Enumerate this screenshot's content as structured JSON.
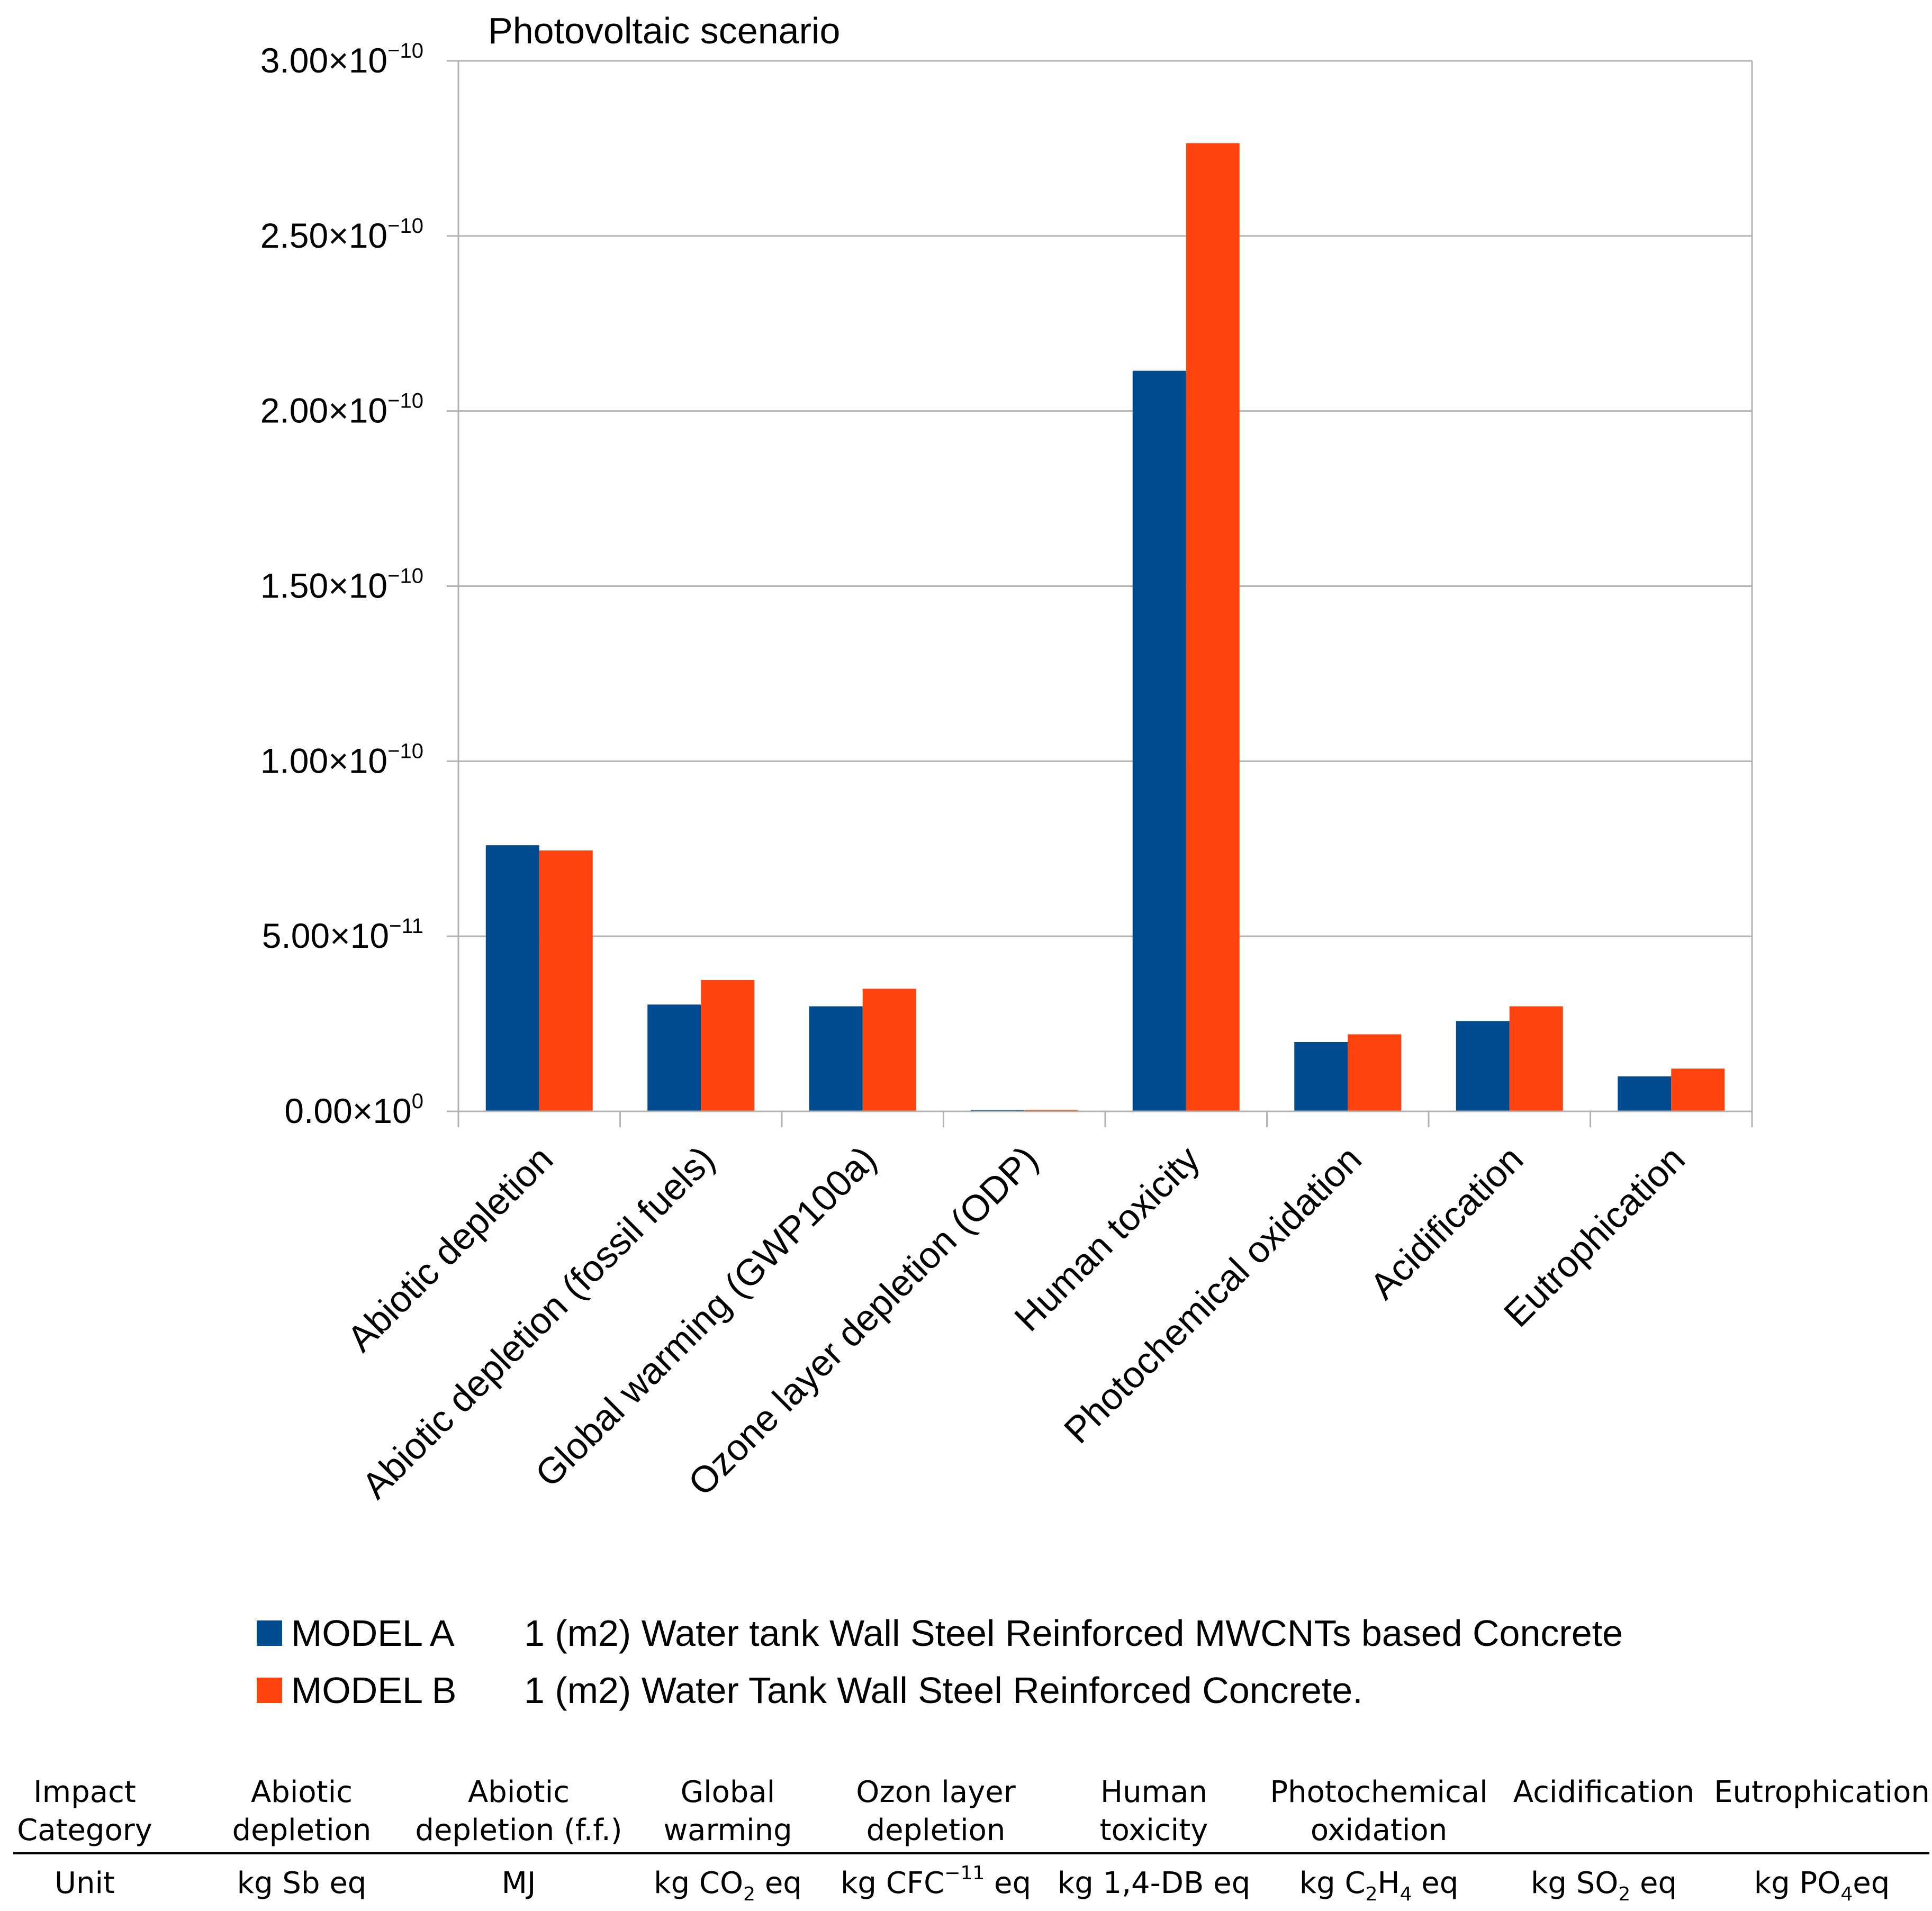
{
  "chart_data": {
    "type": "bar",
    "title": "Photovoltaic scenario",
    "categories": [
      "Abiotic depletion",
      "Abiotic depletion (fossil fuels)",
      "Global warming (GWP100a)",
      "Ozone layer depletion (ODP)",
      "Human toxicity",
      "Photochemical oxidation",
      "Acidification",
      "Eutrophication"
    ],
    "series": [
      {
        "name": "MODEL A",
        "description": "1 (m2) Water tank Wall Steel Reinforced MWCNTs based Concrete",
        "color": "#004a8f",
        "values": [
          7.6e-11,
          3.05e-11,
          3e-11,
          3e-13,
          2.115e-10,
          1.98e-11,
          2.58e-11,
          1e-11
        ]
      },
      {
        "name": "MODEL B",
        "description": "1 (m2) Water Tank Wall Steel Reinforced Concrete.",
        "color": "#ff420e",
        "values": [
          7.45e-11,
          3.75e-11,
          3.5e-11,
          3e-13,
          2.765e-10,
          2.2e-11,
          3e-11,
          1.22e-11
        ]
      }
    ],
    "ylim": [
      0,
      3e-10
    ],
    "yticks": [
      {
        "mantissa": "0.00",
        "exponent": "0"
      },
      {
        "mantissa": "5.00",
        "exponent": "−11"
      },
      {
        "mantissa": "1.00",
        "exponent": "−10"
      },
      {
        "mantissa": "1.50",
        "exponent": "−10"
      },
      {
        "mantissa": "2.00",
        "exponent": "−10"
      },
      {
        "mantissa": "2.50",
        "exponent": "−10"
      },
      {
        "mantissa": "3.00",
        "exponent": "−10"
      }
    ],
    "xlabel": "",
    "ylabel": "",
    "grid": true,
    "legend_position": "bottom"
  },
  "table": {
    "header": [
      [
        "Impact",
        "Category"
      ],
      [
        "Abiotic",
        "depletion"
      ],
      [
        "Abiotic",
        "depletion (f.f.)"
      ],
      [
        "Global",
        "warming"
      ],
      [
        "Ozon layer",
        "depletion"
      ],
      [
        "Human",
        "toxicity"
      ],
      [
        "Photochemical",
        "oxidation"
      ],
      [
        "Acidification"
      ],
      [
        "Eutrophication"
      ]
    ],
    "units": [
      {
        "parts": [
          "Unit"
        ]
      },
      {
        "parts": [
          "kg Sb eq"
        ]
      },
      {
        "parts": [
          "MJ"
        ]
      },
      {
        "parts": [
          "kg CO",
          "2",
          " eq"
        ]
      },
      {
        "parts": [
          "kg CFC",
          "−11",
          " eq"
        ]
      },
      {
        "parts": [
          "kg 1,4-DB eq"
        ]
      },
      {
        "parts": [
          "kg C",
          "2",
          "H",
          "4",
          " eq"
        ]
      },
      {
        "parts": [
          "kg SO",
          "2",
          " eq"
        ]
      },
      {
        "parts": [
          "kg PO",
          "4",
          "eq"
        ]
      }
    ]
  }
}
